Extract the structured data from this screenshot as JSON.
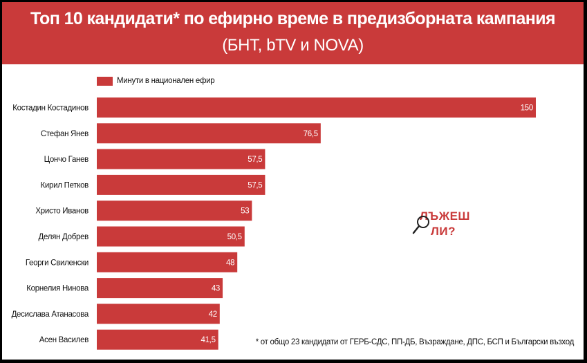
{
  "header": {
    "title": "Топ 10 кандидати* по ефирно време в предизборната кампания",
    "subtitle": "(БНТ, bTV и NOVA)"
  },
  "colors": {
    "accent": "#c93a3a",
    "background": "#ffffff"
  },
  "chart_data": {
    "type": "bar",
    "orientation": "horizontal",
    "categories": [
      "Костадин Костадинов",
      "Стефан Янев",
      "Цончо Ганев",
      "Кирил Петков",
      "Христо Иванов",
      "Делян Добрев",
      "Георги Свиленски",
      "Корнелия Нинова",
      "Десислава Атанасова",
      "Асен Василев"
    ],
    "series": [
      {
        "name": "Минути в национален ефир",
        "values": [
          150,
          76.5,
          57.5,
          57.5,
          53,
          50.5,
          48,
          43,
          42,
          41.5
        ],
        "labels": [
          "150",
          "76,5",
          "57,5",
          "57,5",
          "53",
          "50,5",
          "48",
          "43",
          "42",
          "41,5"
        ]
      }
    ],
    "legend": "top-left",
    "grid": false
  },
  "watermark": {
    "line1": "ЛЪЖЕШ",
    "line2": "ЛИ?",
    "icon": "magnifier-icon"
  },
  "footnote": "* от общо 23 кандидати от ГЕРБ-СДС, ПП-ДБ, Възраждане, ДПС, БСП и Български възход"
}
